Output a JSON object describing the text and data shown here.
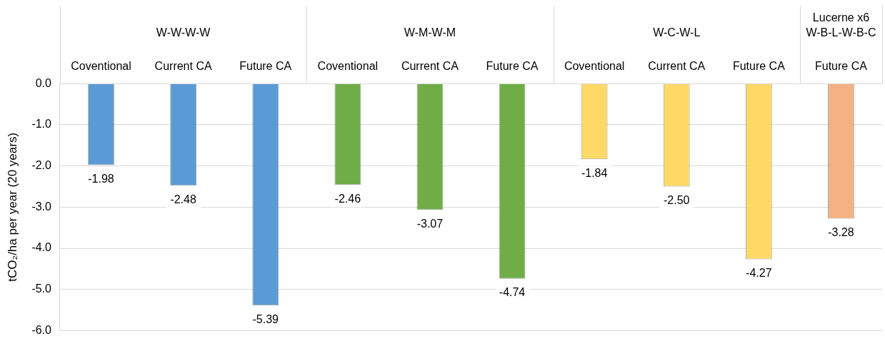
{
  "chart_data": {
    "type": "bar",
    "categories": [
      "Coventional",
      "Current CA",
      "Future CA",
      "Coventional",
      "Current CA",
      "Future CA",
      "Coventional",
      "Current CA",
      "Future CA",
      "Future CA"
    ],
    "values": [
      -1.98,
      -2.48,
      -5.39,
      -2.46,
      -3.07,
      -4.74,
      -1.84,
      -2.5,
      -4.27,
      -3.28
    ],
    "colors": [
      "#5b9bd5",
      "#5b9bd5",
      "#5b9bd5",
      "#70ad47",
      "#70ad47",
      "#70ad47",
      "#ffd966",
      "#ffd966",
      "#ffd966",
      "#f4b183"
    ],
    "ylabel": "tCO₂/ha per year (20 years)",
    "ylim": [
      -6,
      0
    ],
    "yticks": [
      {
        "value": 0,
        "label": "0.0"
      },
      {
        "value": -1,
        "label": "-1.0"
      },
      {
        "value": -2,
        "label": "-2.0"
      },
      {
        "value": -3,
        "label": "-3.0"
      },
      {
        "value": -4,
        "label": "-4.0"
      },
      {
        "value": -5,
        "label": "-5.0"
      },
      {
        "value": -6,
        "label": "-6.0"
      }
    ],
    "annotations": [
      "W-W-W-W",
      "W-M-W-M",
      "W-C-W-L",
      "Lucerne x6\nW-B-L-W-B-C"
    ],
    "grid": "y",
    "value_labels": [
      "-1.98",
      "-2.48",
      "-5.39",
      "-2.46",
      "-3.07",
      "-4.74",
      "-1.84",
      "-2.50",
      "-4.27",
      "-3.28"
    ]
  }
}
